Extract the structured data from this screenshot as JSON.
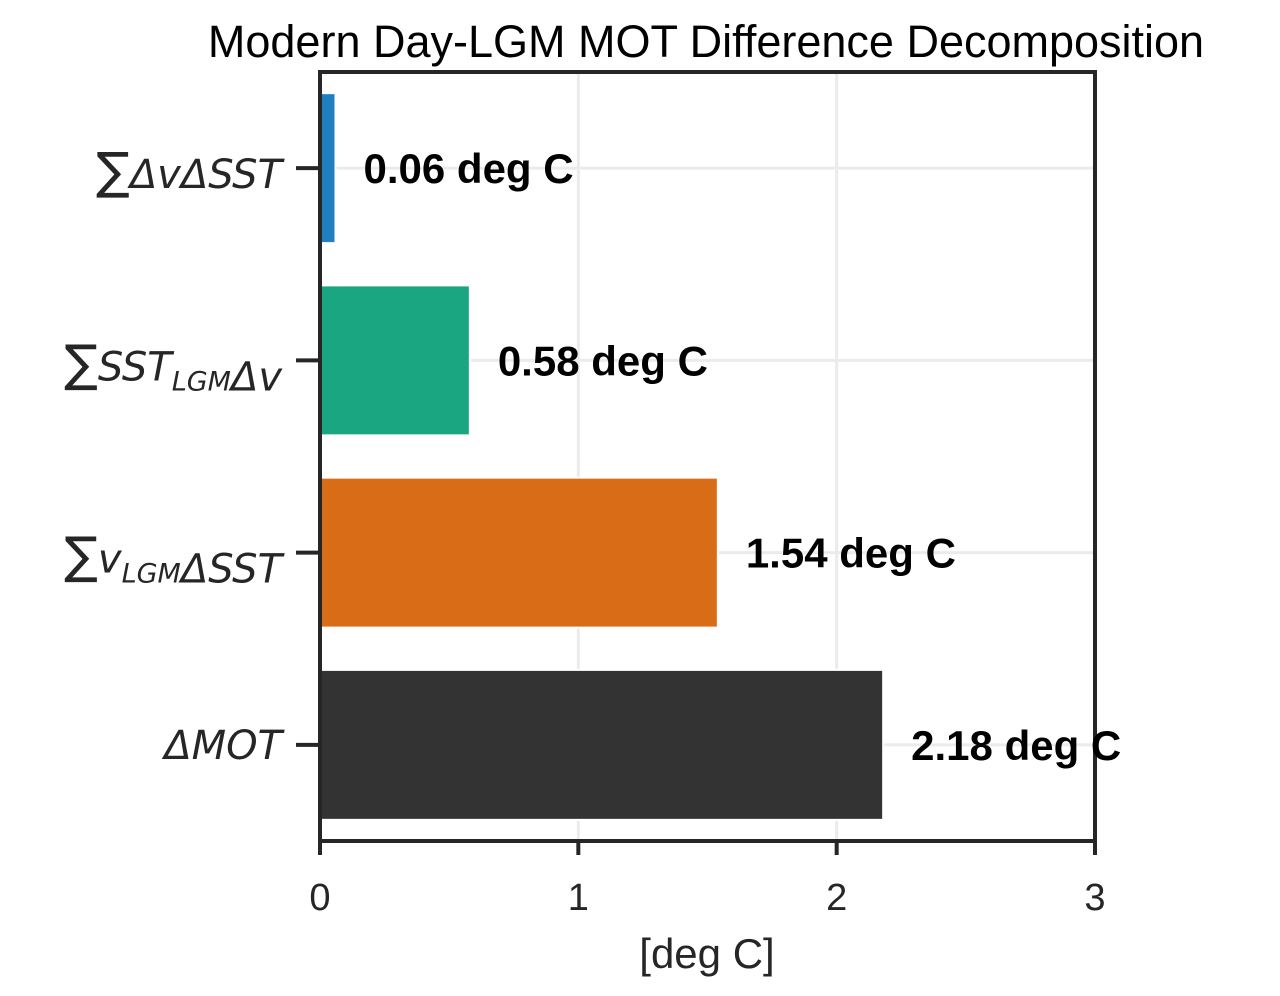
{
  "chart_data": {
    "type": "bar",
    "orientation": "horizontal",
    "title": "Modern Day-LGM MOT Difference Decomposition",
    "xlabel": "[deg C]",
    "ylabel": "",
    "xlim": [
      0,
      3
    ],
    "xticks": [
      0,
      1,
      2,
      3
    ],
    "xtick_labels": [
      "0",
      "1",
      "2",
      "3"
    ],
    "grid": true,
    "legend": "none",
    "categories": [
      {
        "sum": "∑",
        "parts": [
          [
            "ΔvΔSST",
            ""
          ]
        ]
      },
      {
        "sum": "∑",
        "parts": [
          [
            "SST",
            ""
          ],
          [
            "LGM",
            "sub"
          ],
          [
            "Δv",
            ""
          ]
        ]
      },
      {
        "sum": "∑",
        "parts": [
          [
            "v",
            ""
          ],
          [
            "LGM",
            "sub"
          ],
          [
            "ΔSST",
            ""
          ]
        ]
      },
      {
        "sum": "",
        "parts": [
          [
            "ΔMOT",
            ""
          ]
        ]
      }
    ],
    "values": [
      0.06,
      0.58,
      1.54,
      2.18
    ],
    "data_labels": [
      "0.06 deg C",
      "0.58 deg C",
      "1.54 deg C",
      "2.18 deg C"
    ],
    "colors": [
      "#1f7fbf",
      "#1aa680",
      "#d96d17",
      "#333333"
    ]
  }
}
